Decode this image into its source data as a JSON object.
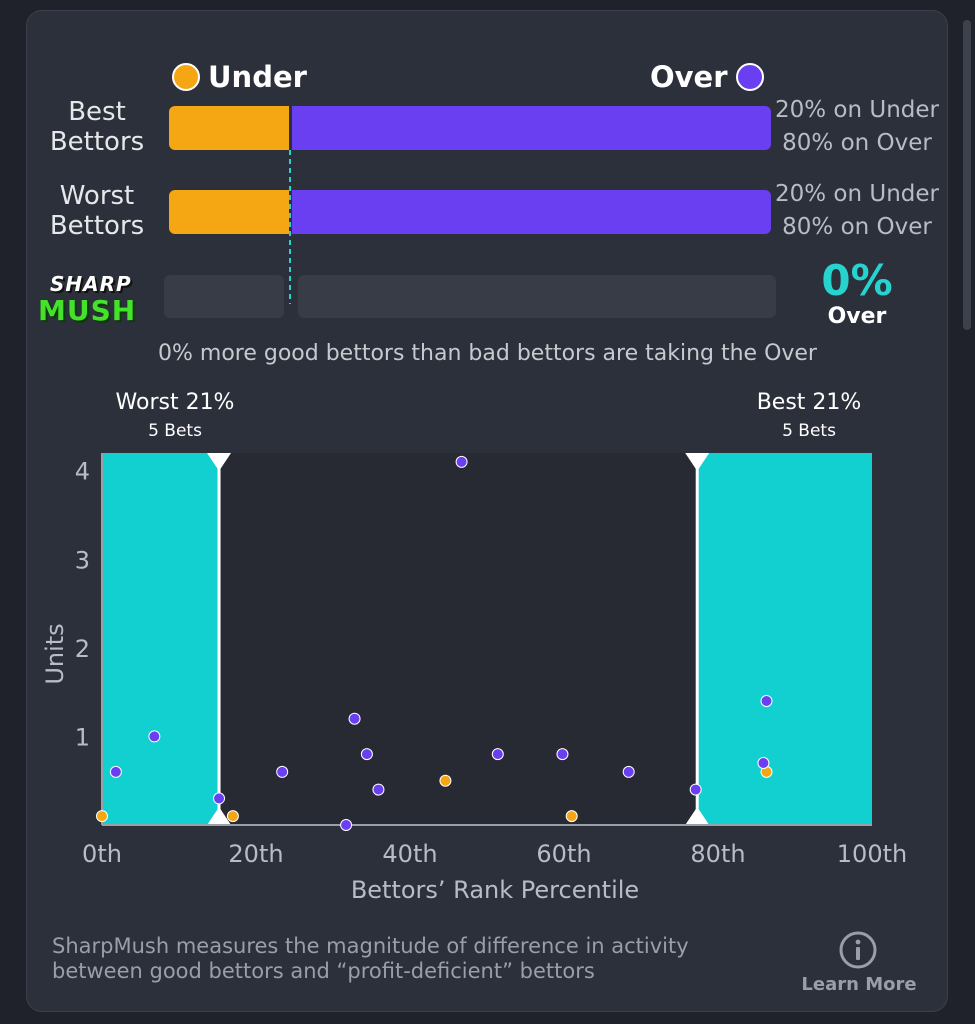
{
  "legend": {
    "under_label": "Under",
    "over_label": "Over"
  },
  "colors": {
    "under": "#f5a613",
    "over": "#6a3ff2",
    "zone": "#12cfd0",
    "accent": "#27d3cf"
  },
  "rows": [
    {
      "label_line1": "Best",
      "label_line2": "Bettors",
      "under_pct": 20,
      "over_pct": 80,
      "under_text": "20% on Under",
      "over_text": "80% on Over"
    },
    {
      "label_line1": "Worst",
      "label_line2": "Bettors",
      "under_pct": 20,
      "over_pct": 80,
      "under_text": "20% on Under",
      "over_text": "80% on Over"
    }
  ],
  "sharpmush": {
    "logo_line1": "SHARP",
    "logo_line2": "MUSH",
    "value_text": "0%",
    "side_text": "Over",
    "summary": "0% more good bettors than bad bettors are taking the Over"
  },
  "zones": {
    "worst_title": "Worst 21%",
    "worst_sub": "5 Bets",
    "best_title": "Best 21%",
    "best_sub": "5 Bets"
  },
  "footer": {
    "line1": "SharpMush measures the magnitude of difference in activity",
    "line2": "between good bettors and “profit-deficient” bettors",
    "learn_more": "Learn More",
    "info_icon": "info-circle-icon"
  },
  "chart_data": {
    "type": "scatter",
    "xlabel": "Bettors’ Rank Percentile",
    "ylabel": "Units",
    "xlim": [
      0,
      100
    ],
    "ylim": [
      0,
      4.2
    ],
    "x_ticks": [
      "0th",
      "20th",
      "40th",
      "60th",
      "80th",
      "100th"
    ],
    "y_ticks": [
      "1",
      "2",
      "3",
      "4"
    ],
    "shaded_ranges": [
      [
        0,
        15.2
      ],
      [
        77.3,
        100
      ]
    ],
    "series": [
      {
        "name": "Under",
        "color": "#f5a613",
        "points": [
          [
            0,
            0.1
          ],
          [
            17,
            0.1
          ],
          [
            44.6,
            0.5
          ],
          [
            61,
            0.1
          ],
          [
            86.3,
            0.6
          ]
        ]
      },
      {
        "name": "Over",
        "color": "#6a3ff2",
        "points": [
          [
            1.8,
            0.6
          ],
          [
            6.8,
            1.0
          ],
          [
            15.2,
            0.3
          ],
          [
            23.4,
            0.6
          ],
          [
            31.7,
            0.0
          ],
          [
            32.8,
            1.2
          ],
          [
            34.4,
            0.8
          ],
          [
            35.9,
            0.4
          ],
          [
            46.7,
            4.1
          ],
          [
            51.4,
            0.8
          ],
          [
            59.8,
            0.8
          ],
          [
            68.4,
            0.6
          ],
          [
            77.1,
            0.4
          ],
          [
            85.9,
            0.7
          ],
          [
            86.3,
            1.4
          ]
        ]
      }
    ]
  }
}
